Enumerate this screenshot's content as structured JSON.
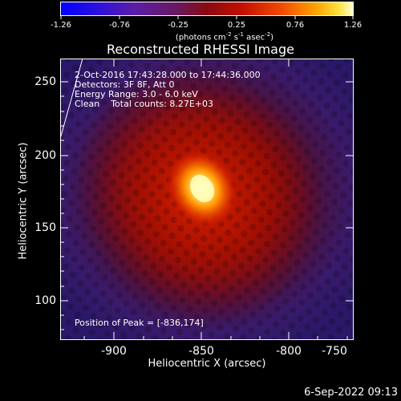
{
  "colorbar": {
    "ticks": [
      "-1.26",
      "-0.76",
      "-0.25",
      "0.25",
      "0.76",
      "1.26"
    ],
    "units_text": "(photons cm",
    "units_sup1": "-2",
    "units_mid1": " s",
    "units_sup2": "-1",
    "units_mid2": " asec",
    "units_sup3": "-2",
    "units_end": ")"
  },
  "plot": {
    "title": "Reconstructed RHESSI Image",
    "xlabel": "Heliocentric X (arcsec)",
    "ylabel": "Heliocentric Y (arcsec)",
    "xticks": [
      "-900",
      "-850",
      "-800",
      "-750"
    ],
    "yticks": [
      "250",
      "200",
      "150",
      "100"
    ],
    "info": {
      "time": "2-Oct-2016 17:43:28.000 to 17:44:36.000",
      "detectors": "Detectors: 3F 8F, Att 0",
      "energy": "Energy Range: 3.0 - 6.0 keV",
      "clean": "Clean    Total counts: 8.27E+03"
    },
    "peak": "Position of Peak = [-836,174]"
  },
  "footer": {
    "timestamp": "6-Sep-2022 09:13"
  },
  "colors": {
    "frame": "#ffffff",
    "background": "#000000"
  }
}
